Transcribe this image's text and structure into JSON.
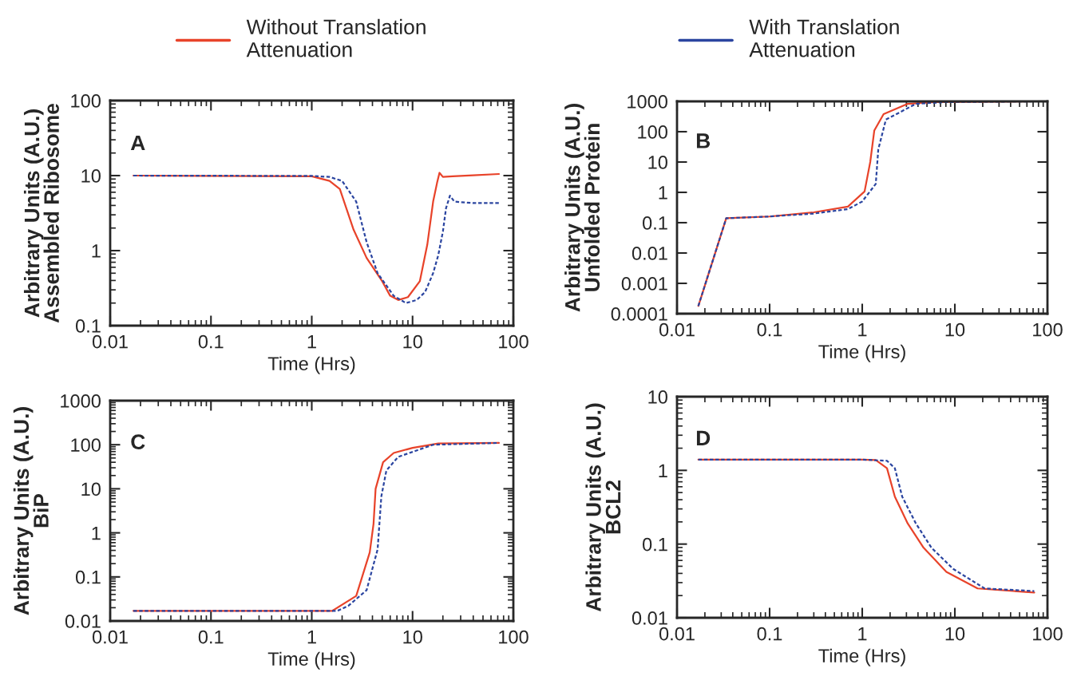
{
  "chart_data": [
    {
      "type": "line",
      "xlabel": "Time (Hrs)",
      "ylabel": "Arbitrary Units (A.U.)\nAssembled Ribosome",
      "annotations": [
        "A"
      ],
      "log": "xy",
      "xlim": [
        0.01,
        100
      ],
      "xticks": [
        0.01,
        0.1,
        1,
        10,
        100
      ],
      "ylim": [
        0.1,
        100
      ],
      "yticks": [
        0.1,
        1,
        10,
        100
      ],
      "grid": false,
      "legend": "top",
      "series": [
        {
          "name": "Without Translation\nAttenuation",
          "color": "#e8432a",
          "line_style": "solid",
          "x": [
            0.017,
            1,
            1.5,
            1.9,
            2.6,
            3.5,
            5,
            6,
            7.2,
            9,
            11.8,
            14,
            16,
            17.5,
            18.5,
            20,
            25,
            40,
            72
          ],
          "values": [
            10,
            9.8,
            8.5,
            6.6,
            1.9,
            0.8,
            0.39,
            0.25,
            0.22,
            0.24,
            0.39,
            1.2,
            4.5,
            8,
            10.9,
            9.6,
            9.8,
            10.1,
            10.5
          ]
        },
        {
          "name": "With Translation\nAttenuation",
          "color": "#2b45a0",
          "line_style": "dashed",
          "x": [
            0.017,
            1,
            1.5,
            2,
            2.76,
            3.5,
            4.5,
            6.5,
            8.6,
            11,
            13.3,
            16,
            18,
            20,
            21.5,
            23.5,
            26,
            40,
            72
          ],
          "values": [
            10,
            9.9,
            9.6,
            8.5,
            4.5,
            1.3,
            0.5,
            0.25,
            0.2,
            0.22,
            0.28,
            0.5,
            0.87,
            1.8,
            3.7,
            5.4,
            4.5,
            4.3,
            4.3
          ]
        }
      ]
    },
    {
      "type": "line",
      "xlabel": "Time (Hrs)",
      "ylabel": "Arbitrary Units (A.U.)\nUnfolded Protein",
      "annotations": [
        "B"
      ],
      "log": "xy",
      "xlim": [
        0.01,
        100
      ],
      "xticks": [
        0.01,
        0.1,
        1,
        10,
        100
      ],
      "ylim": [
        0.0001,
        1000
      ],
      "yticks": [
        0.0001,
        0.001,
        0.01,
        0.1,
        1,
        10,
        100,
        1000
      ],
      "grid": false,
      "series": [
        {
          "color": "#e8432a",
          "line_style": "solid",
          "x": [
            0.017,
            0.034,
            0.1,
            0.3,
            0.7,
            1.06,
            1.22,
            1.35,
            1.7,
            3.1,
            6,
            72
          ],
          "values": [
            0.00018,
            0.14,
            0.16,
            0.22,
            0.34,
            1.07,
            10,
            110,
            380,
            830,
            950,
            1000
          ]
        },
        {
          "color": "#2b45a0",
          "line_style": "dashed",
          "x": [
            0.017,
            0.034,
            0.1,
            0.3,
            0.7,
            1,
            1.4,
            1.49,
            1.8,
            3.8,
            8,
            72
          ],
          "values": [
            0.00018,
            0.14,
            0.16,
            0.2,
            0.28,
            0.5,
            1.9,
            26,
            250,
            830,
            950,
            1000
          ]
        }
      ]
    },
    {
      "type": "line",
      "xlabel": "Time (Hrs)",
      "ylabel": "Arbitrary Units (A.U.)\nBiP",
      "annotations": [
        "C"
      ],
      "log": "xy",
      "xlim": [
        0.01,
        100
      ],
      "xticks": [
        0.01,
        0.1,
        1,
        10,
        100
      ],
      "ylim": [
        0.01,
        1000
      ],
      "yticks": [
        0.01,
        0.1,
        1,
        10,
        100,
        1000
      ],
      "grid": false,
      "series": [
        {
          "color": "#e8432a",
          "line_style": "solid",
          "x": [
            0.017,
            1,
            1.6,
            2.76,
            3.76,
            4.1,
            4.3,
            5.1,
            6.5,
            10,
            18,
            72
          ],
          "values": [
            0.017,
            0.017,
            0.017,
            0.037,
            0.36,
            1.6,
            10,
            40,
            65,
            85,
            107,
            110
          ]
        },
        {
          "color": "#2b45a0",
          "line_style": "dashed",
          "x": [
            0.017,
            1,
            1.8,
            2.3,
            3.5,
            4.5,
            4.9,
            5.5,
            7.2,
            16,
            72
          ],
          "values": [
            0.017,
            0.017,
            0.017,
            0.022,
            0.05,
            0.42,
            6.7,
            26,
            53,
            100,
            110
          ]
        }
      ]
    },
    {
      "type": "line",
      "xlabel": "Time (Hrs)",
      "ylabel": "Arbitrary Units (A.U.)\nBCL2",
      "annotations": [
        "D"
      ],
      "log": "xy",
      "xlim": [
        0.01,
        100
      ],
      "xticks": [
        0.01,
        0.1,
        1,
        10,
        100
      ],
      "ylim": [
        0.01,
        10
      ],
      "yticks": [
        0.01,
        0.1,
        1,
        10
      ],
      "grid": false,
      "series": [
        {
          "color": "#e8432a",
          "line_style": "solid",
          "x": [
            0.017,
            1,
            1.4,
            1.85,
            2.25,
            3.1,
            4.6,
            8.1,
            17.6,
            72
          ],
          "values": [
            1.4,
            1.4,
            1.38,
            1.07,
            0.44,
            0.19,
            0.089,
            0.042,
            0.025,
            0.022
          ]
        },
        {
          "color": "#2b45a0",
          "line_style": "dashed",
          "x": [
            0.017,
            1,
            1.85,
            2.25,
            2.7,
            3.8,
            5.6,
            9.6,
            21,
            72
          ],
          "values": [
            1.4,
            1.4,
            1.35,
            1.07,
            0.44,
            0.19,
            0.089,
            0.046,
            0.025,
            0.023
          ]
        }
      ]
    }
  ]
}
